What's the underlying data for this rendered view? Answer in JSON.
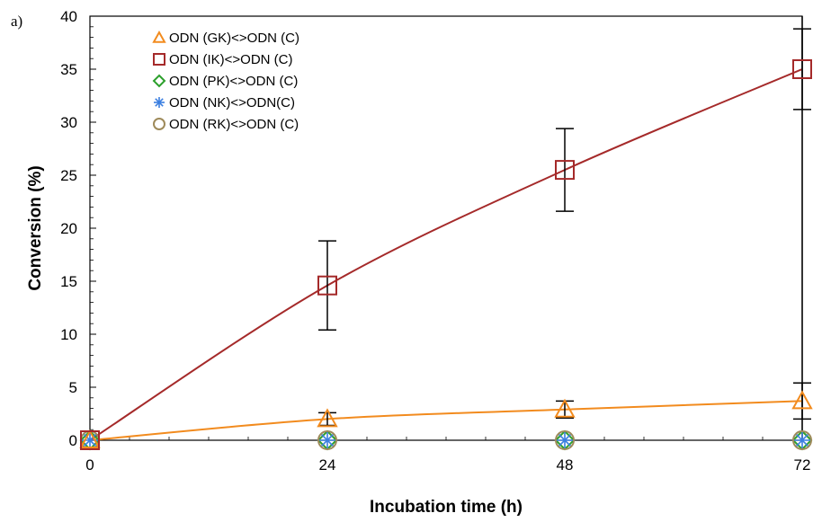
{
  "panel_label": "a)",
  "chart_data": {
    "type": "line",
    "title": "",
    "xlabel": "Incubation time (h)",
    "ylabel": "Conversion (%)",
    "x": [
      0,
      24,
      48,
      72
    ],
    "xlim": [
      0,
      72
    ],
    "ylim": [
      0,
      40
    ],
    "xticks": [
      "0",
      "24",
      "48",
      "72"
    ],
    "yticks": [
      "0",
      "5",
      "10",
      "15",
      "20",
      "25",
      "30",
      "35",
      "40"
    ],
    "grid": false,
    "legend_position": "top-left",
    "series": [
      {
        "name": "ODN (GK)<>ODN (C)",
        "marker": "triangle",
        "color": "#f28b1e",
        "values": [
          0,
          2.0,
          2.9,
          3.7
        ],
        "errors": [
          0,
          0.6,
          0.8,
          1.7
        ],
        "line": true
      },
      {
        "name": "ODN (IK)<>ODN (C)",
        "marker": "square",
        "color": "#a52a2a",
        "values": [
          0,
          14.6,
          25.5,
          35.0
        ],
        "errors": [
          0,
          4.2,
          3.9,
          3.8
        ],
        "line": true
      },
      {
        "name": "ODN (PK)<>ODN (C)",
        "marker": "diamond",
        "color": "#2ca02c",
        "values": [
          0,
          0,
          0,
          0
        ],
        "errors": [
          0,
          0,
          0,
          0
        ],
        "line": false
      },
      {
        "name": "ODN (NK)<>ODN(C)",
        "marker": "asterisk",
        "color": "#3b7fe0",
        "values": [
          0,
          0,
          0,
          0
        ],
        "errors": [
          0,
          0,
          0,
          0
        ],
        "line": false
      },
      {
        "name": "ODN (RK)<>ODN (C)",
        "marker": "circle",
        "color": "#9e8a5a",
        "values": [
          0,
          0,
          0,
          0
        ],
        "errors": [
          0,
          0,
          0,
          0
        ],
        "line": false
      }
    ],
    "vertical_line_at_x": 72
  }
}
